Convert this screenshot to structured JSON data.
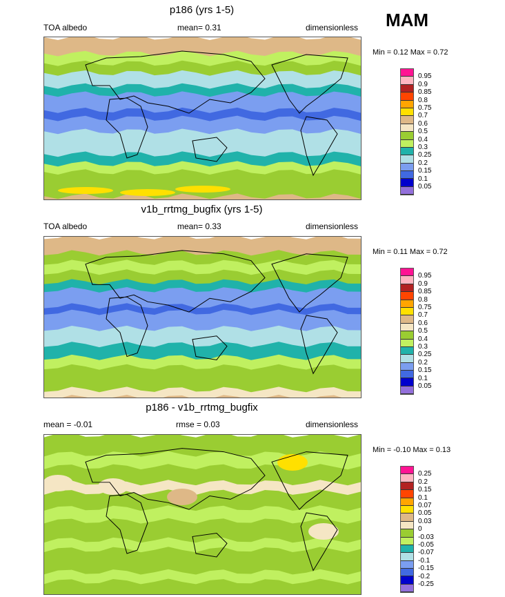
{
  "season": "MAM",
  "colors": [
    "#9370DB",
    "#0000CD",
    "#4169E1",
    "#7B9EF0",
    "#B0E0E6",
    "#20B2AA",
    "#C0F060",
    "#9ACD32",
    "#F5E6C4",
    "#DEB887",
    "#FFE000",
    "#FFA500",
    "#FF4500",
    "#B22222",
    "#FFB6C1",
    "#FF1493"
  ],
  "panels": [
    {
      "title": "p186 (yrs 1-5)",
      "left": "TOA albedo",
      "center": "mean=   0.31",
      "right": "dimensionless",
      "minmax": "Min =   0.12 Max =   0.72",
      "levels": [
        "0.05",
        "0.1",
        "0.15",
        "0.2",
        "0.25",
        "0.3",
        "0.4",
        "0.5",
        "0.6",
        "0.7",
        "0.75",
        "0.8",
        "0.85",
        "0.9",
        "0.95"
      ]
    },
    {
      "title": "v1b_rrtmg_bugfix (yrs 1-5)",
      "left": "TOA albedo",
      "center": "mean=   0.33",
      "right": "dimensionless",
      "minmax": "Min =   0.11 Max =   0.72",
      "levels": [
        "0.05",
        "0.1",
        "0.15",
        "0.2",
        "0.25",
        "0.3",
        "0.4",
        "0.5",
        "0.6",
        "0.7",
        "0.75",
        "0.8",
        "0.85",
        "0.9",
        "0.95"
      ]
    },
    {
      "title": "p186 - v1b_rrtmg_bugfix",
      "left": "mean =  -0.01",
      "center": "rmse =   0.03",
      "right": "dimensionless",
      "minmax": "Min =  -0.10 Max =   0.13",
      "levels": [
        "-0.25",
        "-0.2",
        "-0.15",
        "-0.1",
        "-0.07",
        "-0.05",
        "-0.03",
        "0",
        "0.03",
        "0.05",
        "0.07",
        "0.1",
        "0.15",
        "0.2",
        "0.25"
      ]
    }
  ]
}
